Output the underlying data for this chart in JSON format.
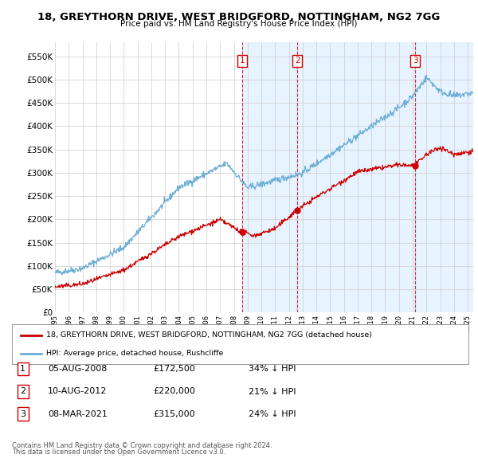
{
  "title": "18, GREYTHORN DRIVE, WEST BRIDGFORD, NOTTINGHAM, NG2 7GG",
  "subtitle": "Price paid vs. HM Land Registry's House Price Index (HPI)",
  "ylabel_ticks": [
    "£0",
    "£50K",
    "£100K",
    "£150K",
    "£200K",
    "£250K",
    "£300K",
    "£350K",
    "£400K",
    "£450K",
    "£500K",
    "£550K"
  ],
  "ytick_values": [
    0,
    50000,
    100000,
    150000,
    200000,
    250000,
    300000,
    350000,
    400000,
    450000,
    500000,
    550000
  ],
  "ylim": [
    0,
    580000
  ],
  "xlim_start": 1995.0,
  "xlim_end": 2025.4,
  "hpi_color": "#6baed6",
  "price_color": "#cc0000",
  "shade_color": "#ddeeff",
  "grid_color": "#cccccc",
  "bg_color": "#ffffff",
  "plot_bg_color": "#ffffff",
  "transactions": [
    {
      "label": "1",
      "date": "05-AUG-2008",
      "x": 2008.59,
      "price": 172500,
      "pct": "34%",
      "direction": "↓"
    },
    {
      "label": "2",
      "date": "10-AUG-2012",
      "x": 2012.61,
      "price": 220000,
      "pct": "21%",
      "direction": "↓"
    },
    {
      "label": "3",
      "date": "08-MAR-2021",
      "x": 2021.18,
      "price": 315000,
      "pct": "24%",
      "direction": "↓"
    }
  ],
  "legend_line1": "18, GREYTHORN DRIVE, WEST BRIDGFORD, NOTTINGHAM, NG2 7GG (detached house)",
  "legend_line2": "HPI: Average price, detached house, Rushcliffe",
  "footnote1": "Contains HM Land Registry data © Crown copyright and database right 2024.",
  "footnote2": "This data is licensed under the Open Government Licence v3.0."
}
